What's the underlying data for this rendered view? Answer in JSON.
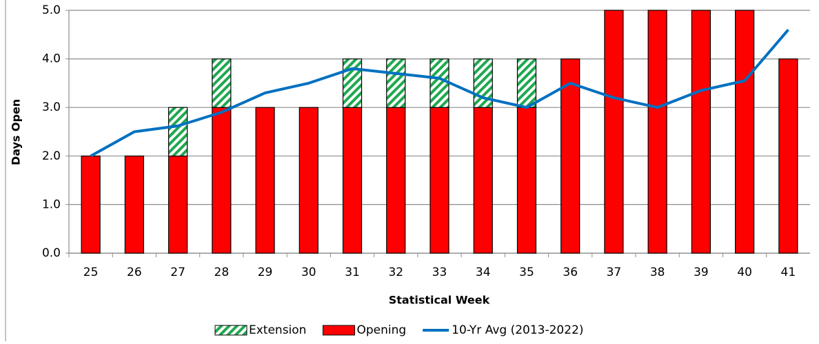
{
  "chart_data": {
    "type": "bar",
    "x_label": "Statistical Week",
    "y_label": "Days Open",
    "categories": [
      "25",
      "26",
      "27",
      "28",
      "29",
      "30",
      "31",
      "32",
      "33",
      "34",
      "35",
      "36",
      "37",
      "38",
      "39",
      "40",
      "41"
    ],
    "series": [
      {
        "name": "Extension",
        "type": "bar",
        "pattern": "hatch",
        "color": "#1fa84f",
        "values": [
          0,
          0,
          1,
          1,
          0,
          0,
          1,
          1,
          1,
          1,
          1,
          0,
          0,
          0,
          0,
          0,
          0
        ]
      },
      {
        "name": "Opening",
        "type": "bar",
        "color": "#ff0000",
        "values": [
          2,
          2,
          2,
          3,
          3,
          3,
          3,
          3,
          3,
          3,
          3,
          4,
          5,
          5,
          5,
          5,
          4
        ]
      },
      {
        "name": "10-Yr Avg (2013-2022)",
        "type": "line",
        "color": "#0070c0",
        "values": [
          2.0,
          2.5,
          2.62,
          2.9,
          3.3,
          3.5,
          3.8,
          3.7,
          3.6,
          3.2,
          3.0,
          3.5,
          3.2,
          3.0,
          3.35,
          3.55,
          4.6
        ]
      }
    ],
    "stack_order": [
      1,
      0
    ],
    "ylim": [
      0,
      5
    ],
    "yticks": [
      {
        "value": 0,
        "label": "0.0"
      },
      {
        "value": 1,
        "label": "1.0"
      },
      {
        "value": 2,
        "label": "2.0"
      },
      {
        "value": 3,
        "label": "3.0"
      },
      {
        "value": 4,
        "label": "4.0"
      },
      {
        "value": 5,
        "label": "5.0"
      }
    ],
    "grid": true,
    "legend": "bottom"
  }
}
